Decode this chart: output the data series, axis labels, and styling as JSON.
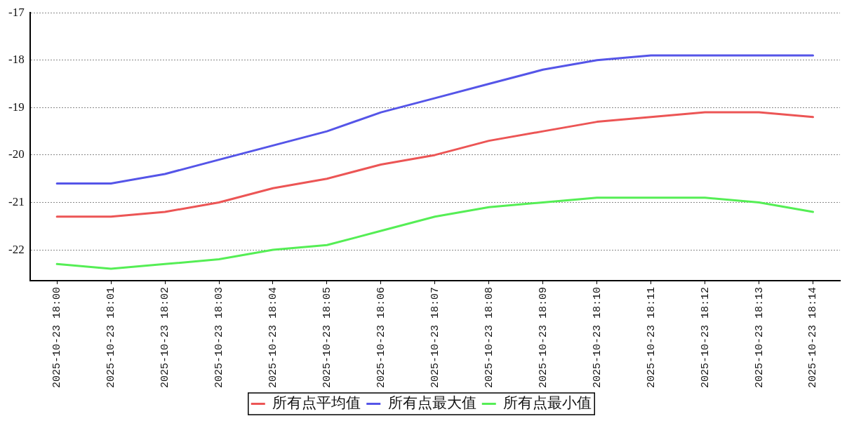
{
  "chart_data": {
    "type": "line",
    "categories": [
      "2025-10-23 18:00",
      "2025-10-23 18:01",
      "2025-10-23 18:02",
      "2025-10-23 18:03",
      "2025-10-23 18:04",
      "2025-10-23 18:05",
      "2025-10-23 18:06",
      "2025-10-23 18:07",
      "2025-10-23 18:08",
      "2025-10-23 18:09",
      "2025-10-23 18:10",
      "2025-10-23 18:11",
      "2025-10-23 18:12",
      "2025-10-23 18:13",
      "2025-10-23 18:14"
    ],
    "series": [
      {
        "name": "所有点平均值",
        "color": "#ec5555",
        "values": [
          -21.3,
          -21.3,
          -21.2,
          -21.0,
          -20.7,
          -20.5,
          -20.2,
          -20.0,
          -19.7,
          -19.5,
          -19.3,
          -19.2,
          -19.1,
          -19.1,
          -19.2
        ]
      },
      {
        "name": "所有点最大值",
        "color": "#5555e8",
        "values": [
          -20.6,
          -20.6,
          -20.4,
          -20.1,
          -19.8,
          -19.5,
          -19.1,
          -18.8,
          -18.5,
          -18.2,
          -18.0,
          -17.9,
          -17.9,
          -17.9,
          -17.9
        ]
      },
      {
        "name": "所有点最小值",
        "color": "#55ee55",
        "values": [
          -22.3,
          -22.4,
          -22.3,
          -22.2,
          -22.0,
          -21.9,
          -21.6,
          -21.3,
          -21.1,
          -21.0,
          -20.9,
          -20.9,
          -20.9,
          -21.0,
          -21.2
        ]
      }
    ],
    "ylim": [
      -22.65,
      -17
    ],
    "yticks": [
      -22,
      -21,
      -20,
      -19,
      -18,
      -17
    ],
    "grid": "y",
    "legend": "bottom",
    "marker": "none",
    "line_style": "solid"
  }
}
